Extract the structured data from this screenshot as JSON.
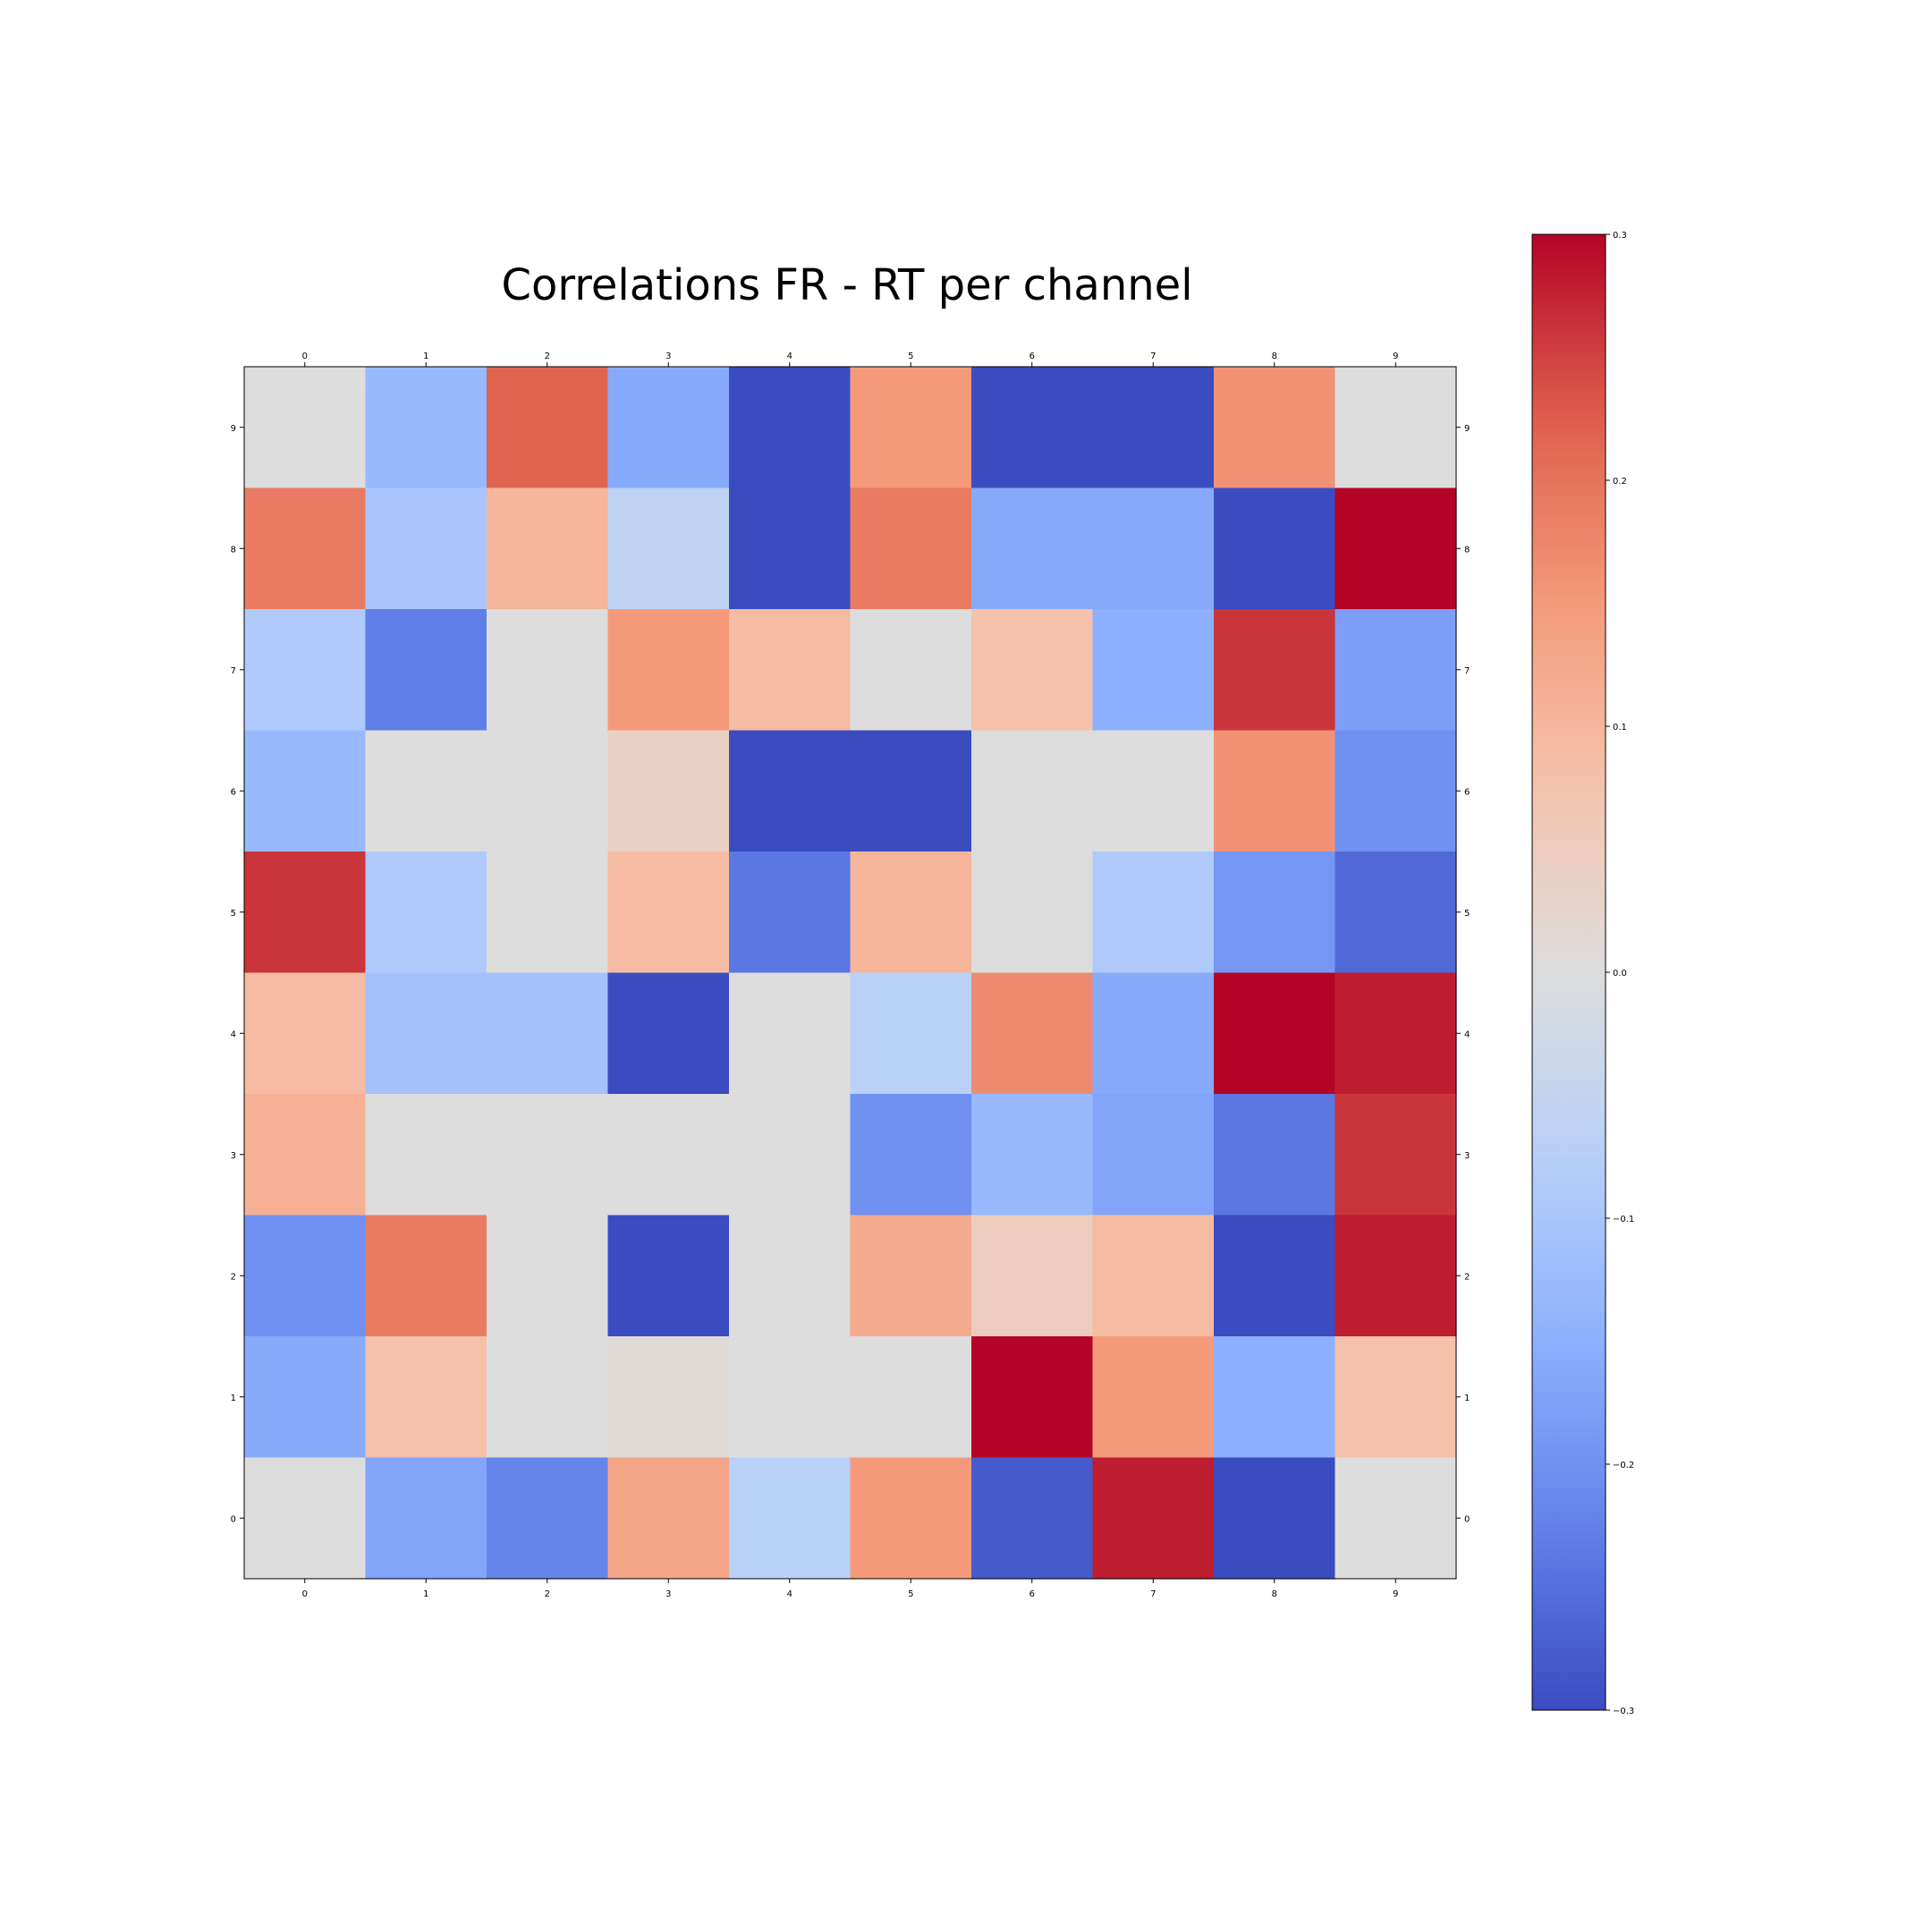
{
  "chart_data": {
    "type": "heatmap",
    "title": "Correlations FR - RT per channel",
    "xlabel": "",
    "ylabel": "",
    "x_categories": [
      "0",
      "1",
      "2",
      "3",
      "4",
      "5",
      "6",
      "7",
      "8",
      "9"
    ],
    "y_categories": [
      "9",
      "8",
      "7",
      "6",
      "5",
      "4",
      "3",
      "2",
      "1",
      "0"
    ],
    "values": [
      [
        0.0,
        -0.13,
        0.22,
        -0.16,
        -0.3,
        0.15,
        -0.3,
        -0.3,
        0.16,
        0.0
      ],
      [
        0.19,
        -0.1,
        0.1,
        -0.06,
        -0.3,
        0.19,
        -0.16,
        -0.16,
        -0.3,
        0.3
      ],
      [
        -0.09,
        -0.23,
        0.0,
        0.15,
        0.09,
        0.0,
        0.08,
        -0.15,
        0.26,
        -0.18
      ],
      [
        -0.13,
        0.0,
        0.0,
        0.04,
        -0.3,
        -0.3,
        0.0,
        0.0,
        0.16,
        -0.2
      ],
      [
        0.26,
        -0.09,
        0.0,
        0.09,
        -0.24,
        0.1,
        0.0,
        -0.09,
        -0.19,
        -0.26
      ],
      [
        0.09,
        -0.11,
        -0.11,
        -0.3,
        0.0,
        -0.07,
        0.17,
        -0.16,
        0.3,
        0.28
      ],
      [
        0.11,
        0.0,
        0.0,
        0.0,
        0.0,
        -0.2,
        -0.13,
        -0.17,
        -0.24,
        0.26
      ],
      [
        -0.2,
        0.19,
        0.0,
        -0.3,
        0.0,
        0.12,
        0.05,
        0.09,
        -0.3,
        0.28
      ],
      [
        -0.16,
        0.08,
        0.0,
        0.01,
        0.0,
        0.0,
        0.3,
        0.15,
        -0.15,
        0.08
      ],
      [
        0.0,
        -0.17,
        -0.22,
        0.13,
        -0.07,
        0.15,
        -0.28,
        0.28,
        -0.3,
        0.0
      ]
    ],
    "colormap": "coolwarm",
    "colorbar": {
      "vmin": -0.3,
      "vmax": 0.3,
      "ticks": [
        {
          "value": 0.3,
          "label": "0.3"
        },
        {
          "value": 0.2,
          "label": "0.2"
        },
        {
          "value": 0.1,
          "label": "0.1"
        },
        {
          "value": 0.0,
          "label": "0.0"
        },
        {
          "value": -0.1,
          "label": "−0.1"
        },
        {
          "value": -0.2,
          "label": "−0.2"
        },
        {
          "value": -0.3,
          "label": "−0.3"
        }
      ]
    },
    "grid": false,
    "legend": "colorbar-right"
  }
}
